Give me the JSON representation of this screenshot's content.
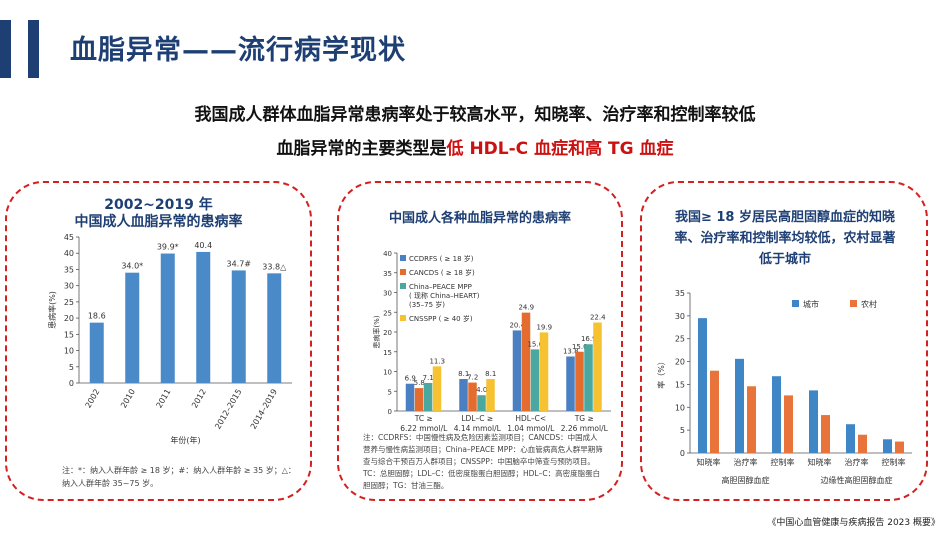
{
  "header": {
    "title": "血脂异常——流行病学现状",
    "subtitle1": "我国成人群体血脂异常患病率处于较高水平，知晓率、治疗率和控制率较低",
    "subtitle2_prefix": "血脂异常的主要类型是",
    "subtitle2_highlight": "低 HDL-C 血症和高 TG 血症"
  },
  "panel1": {
    "title_line1": "2002~2019 年",
    "title_line2": "中国成人血脂异常的患病率",
    "note_line1": "注：*：纳入人群年龄 ≥ 18 岁；#：纳入人群年龄 ≥ 35 岁；△：",
    "note_line2": "纳入人群年龄 35~75 岁。"
  },
  "panel2": {
    "title": "中国成人各种血脂异常的患病率",
    "note": "注：CCDRFS：中国慢性病及危险因素监测项目；CANCDS：中国成人营养与慢性病监测项目；China–PEACE MPP：心血管病高危人群早期筛查与综合干预百万人群项目；CNSSPP：中国脑卒中筛查与预防项目。TC：总胆固醇；LDL–C：低密度脂蛋白胆固醇；HDL–C：高密度脂蛋白胆固醇；TG：甘油三酯。"
  },
  "panel3": {
    "title": "我国≥ 18 岁居民高胆固醇血症的知晓率、治疗率和控制率均较低，农村显著低于城市"
  },
  "source": "《中国心血管健康与疾病报告 2023 概要》",
  "colors": {
    "navy": "#1e3f73",
    "red": "#cc1111",
    "bar_blue": "#4a8ac9",
    "series": [
      "#4a7fc1",
      "#e46c2e",
      "#4aa8a1",
      "#f6c232"
    ],
    "urban": "#3f86c6",
    "rural": "#e8743b"
  },
  "chart_data": [
    {
      "type": "bar",
      "ylabel": "患病率(%)",
      "xlabel": "年份(年)",
      "ylim": [
        0,
        45
      ],
      "yticks": [
        0,
        5,
        10,
        15,
        20,
        25,
        30,
        35,
        40,
        45
      ],
      "categories": [
        "2002",
        "2010",
        "2011",
        "2012",
        "2012–2015",
        "2014–2019"
      ],
      "values": [
        18.6,
        34.0,
        39.9,
        40.4,
        34.7,
        33.8
      ],
      "value_labels": [
        "18.6",
        "34.0*",
        "39.9*",
        "40.4",
        "34.7#",
        "33.8△"
      ]
    },
    {
      "type": "bar",
      "ylabel": "患病率(%)",
      "ylim": [
        0,
        40
      ],
      "yticks": [
        0,
        5,
        10,
        15,
        20,
        25,
        30,
        35,
        40
      ],
      "categories": [
        "TC ≥ 6.22 mmol/L",
        "LDL–C ≥ 4.14 mmol/L",
        "HDL–C< 1.04 mmol/L",
        "TG ≥ 2.26 mmol/L"
      ],
      "category_line1": [
        "TC ≥",
        "LDL–C ≥",
        "HDL–C<",
        "TG ≥"
      ],
      "category_line2": [
        "6.22 mmol/L",
        "4.14 mmol/L",
        "1.04 mmol/L",
        "2.26 mmol/L"
      ],
      "legend_position": "top-left",
      "series": [
        {
          "name": "CCDRFS ( ≥ 18 岁)",
          "values": [
            6.9,
            8.1,
            20.4,
            13.8
          ]
        },
        {
          "name": "CANCDS ( ≥ 18 岁)",
          "values": [
            5.8,
            7.2,
            24.9,
            15.0
          ]
        },
        {
          "name": "China–PEACE MPP (现称 China–HEART) (35–75 岁)",
          "values": [
            7.1,
            4.0,
            15.6,
            16.9
          ]
        },
        {
          "name": "CNSSPP ( ≥ 40 岁)",
          "values": [
            11.3,
            8.1,
            19.9,
            22.4
          ]
        }
      ],
      "legend_lines": [
        [
          "CCDRFS ( ≥ 18 岁)"
        ],
        [
          "CANCDS ( ≥ 18 岁)"
        ],
        [
          "China–PEACE MPP",
          "( 现称 China–HEART)",
          "(35–75 岁)"
        ],
        [
          "CNSSPP ( ≥ 40 岁)"
        ]
      ]
    },
    {
      "type": "bar",
      "ylabel": "率（%）",
      "ylim": [
        0,
        35
      ],
      "yticks": [
        0,
        5,
        10,
        15,
        20,
        25,
        30,
        35
      ],
      "categories": [
        "知晓率",
        "治疗率",
        "控制率",
        "知晓率",
        "治疗率",
        "控制率"
      ],
      "groups": [
        "高胆固醇血症",
        "边缘性高胆固醇血症"
      ],
      "legend_position": "top-right",
      "series": [
        {
          "name": "城市",
          "values": [
            29.5,
            20.6,
            16.8,
            13.7,
            6.3,
            3.0
          ]
        },
        {
          "name": "农村",
          "values": [
            18.0,
            14.6,
            12.6,
            8.3,
            4.0,
            2.5
          ]
        }
      ]
    }
  ]
}
